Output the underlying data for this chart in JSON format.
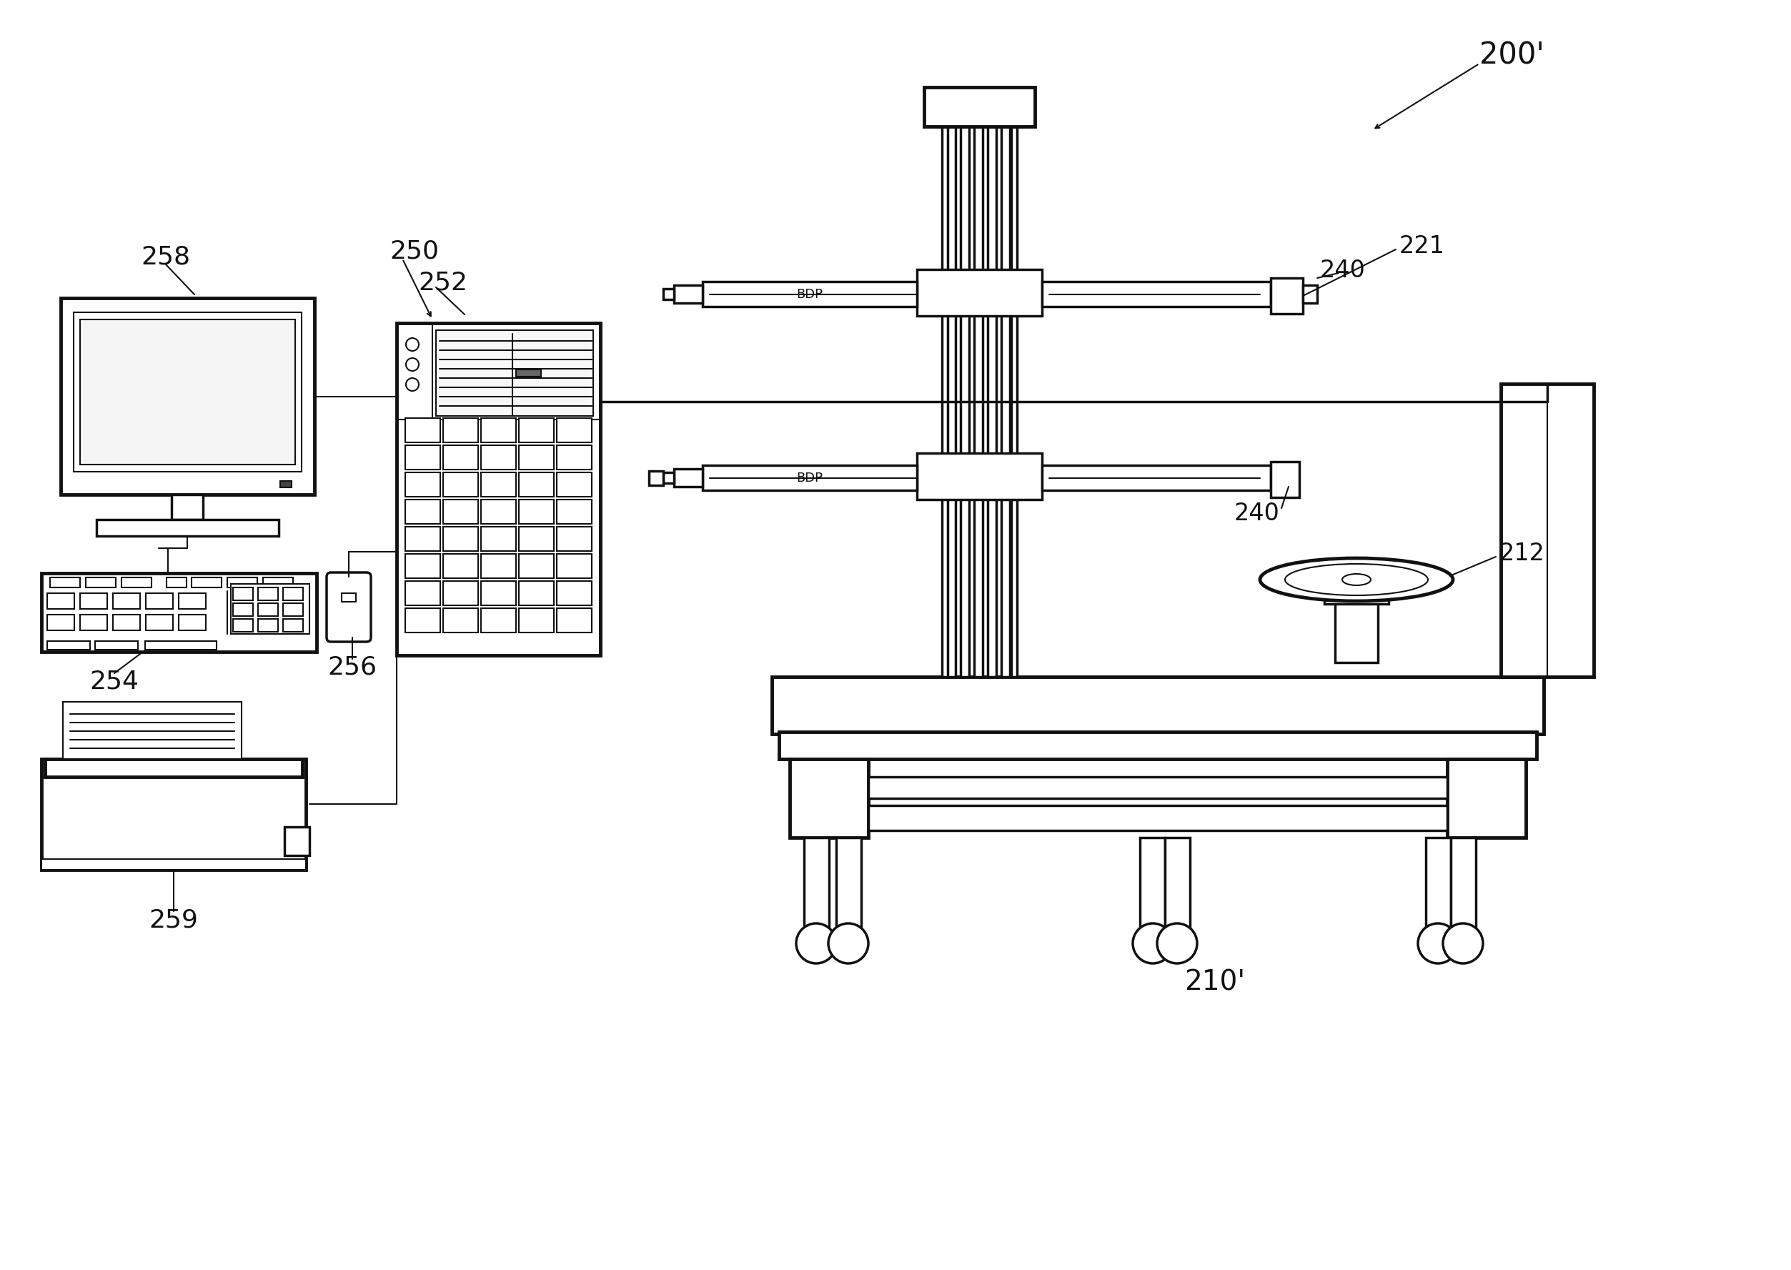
{
  "bg_color": "#ffffff",
  "lc": "#111111",
  "lw_main": 2.5,
  "lw_thick": 3.5,
  "lw_thin": 1.5,
  "lw_xthick": 4.5,
  "labels": {
    "200p": "200'",
    "210p": "210'",
    "212": "212",
    "221": "221",
    "240": "240",
    "250": "250",
    "252": "252",
    "254": "254",
    "256": "256",
    "258": "258",
    "259": "259"
  },
  "fs": 26,
  "sfs": 12
}
